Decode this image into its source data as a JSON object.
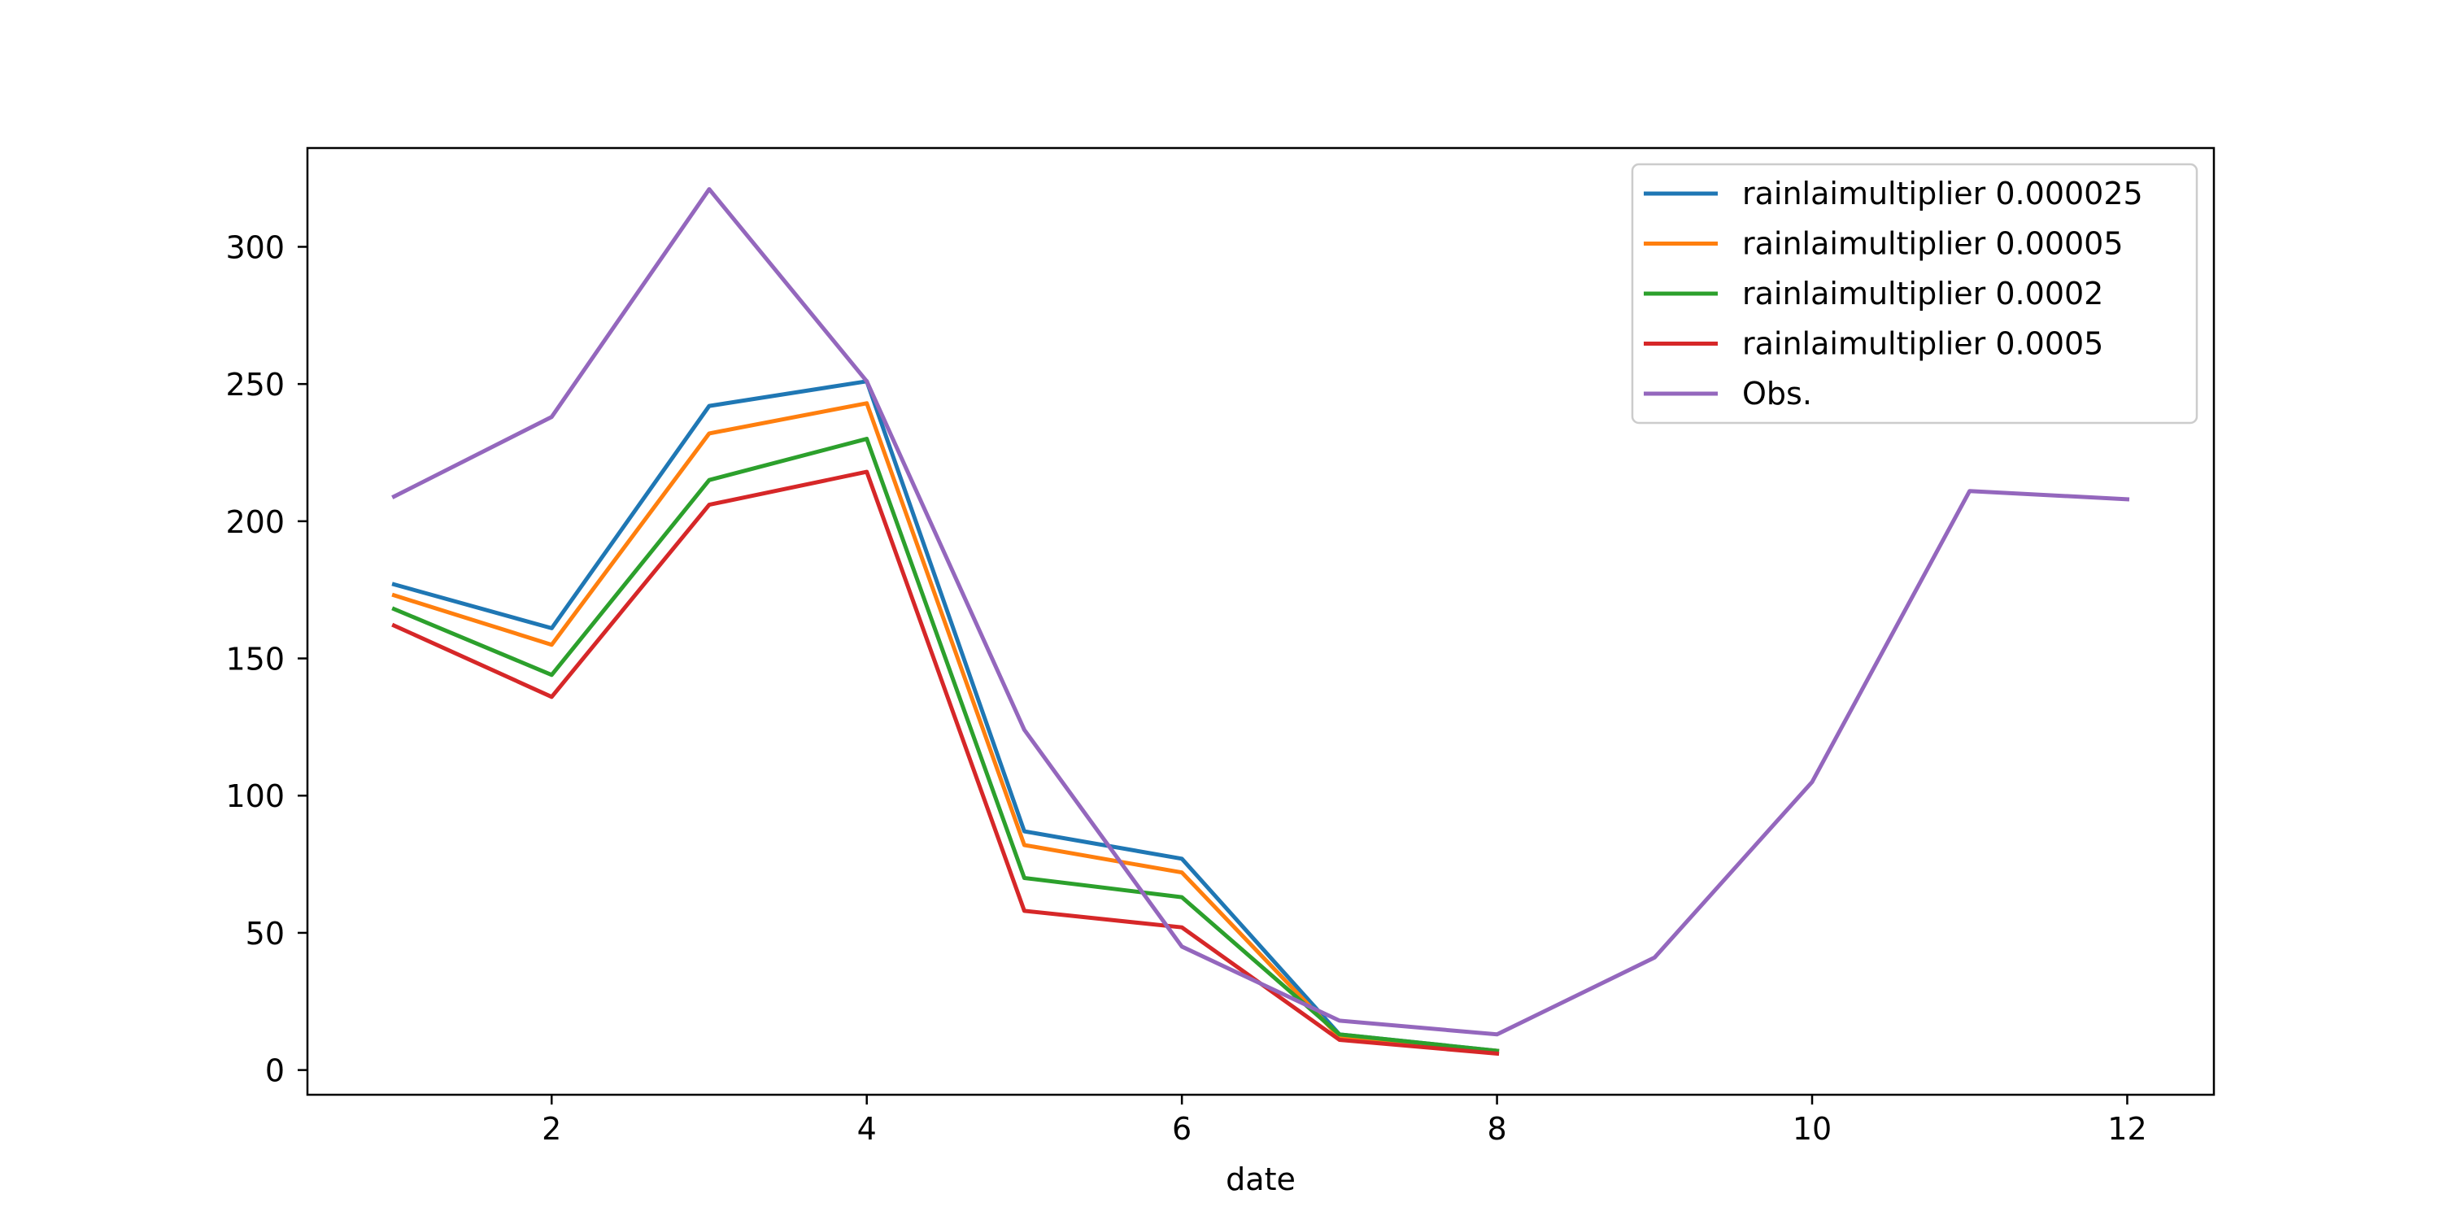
{
  "chart_data": {
    "type": "line",
    "title": "",
    "xlabel": "date",
    "ylabel": "",
    "xlim": [
      0.45,
      12.55
    ],
    "ylim": [
      -9,
      336
    ],
    "xticks": [
      2,
      4,
      6,
      8,
      10,
      12
    ],
    "yticks": [
      0,
      50,
      100,
      150,
      200,
      250,
      300
    ],
    "grid": false,
    "legend_position": "top-right",
    "series": [
      {
        "name": "rainlaimultiplier 0.000025",
        "color": "#1f77b4",
        "x": [
          1,
          2,
          3,
          4,
          5,
          6,
          7,
          8
        ],
        "y": [
          177,
          161,
          242,
          251,
          87,
          77,
          13,
          7
        ]
      },
      {
        "name": "rainlaimultiplier 0.00005",
        "color": "#ff7f0e",
        "x": [
          1,
          2,
          3,
          4,
          5,
          6,
          7,
          8
        ],
        "y": [
          173,
          155,
          232,
          243,
          82,
          72,
          12,
          7
        ]
      },
      {
        "name": "rainlaimultiplier 0.0002",
        "color": "#2ca02c",
        "x": [
          1,
          2,
          3,
          4,
          5,
          6,
          7,
          8
        ],
        "y": [
          168,
          144,
          215,
          230,
          70,
          63,
          13,
          7
        ]
      },
      {
        "name": "rainlaimultiplier 0.0005",
        "color": "#d62728",
        "x": [
          1,
          2,
          3,
          4,
          5,
          6,
          7,
          8
        ],
        "y": [
          162,
          136,
          206,
          218,
          58,
          52,
          11,
          6
        ]
      },
      {
        "name": "Obs.",
        "color": "#9467bd",
        "x": [
          1,
          2,
          3,
          4,
          5,
          6,
          7,
          8,
          9,
          10,
          11,
          12
        ],
        "y": [
          209,
          238,
          321,
          251,
          124,
          45,
          18,
          13,
          41,
          105,
          211,
          208
        ]
      }
    ]
  }
}
